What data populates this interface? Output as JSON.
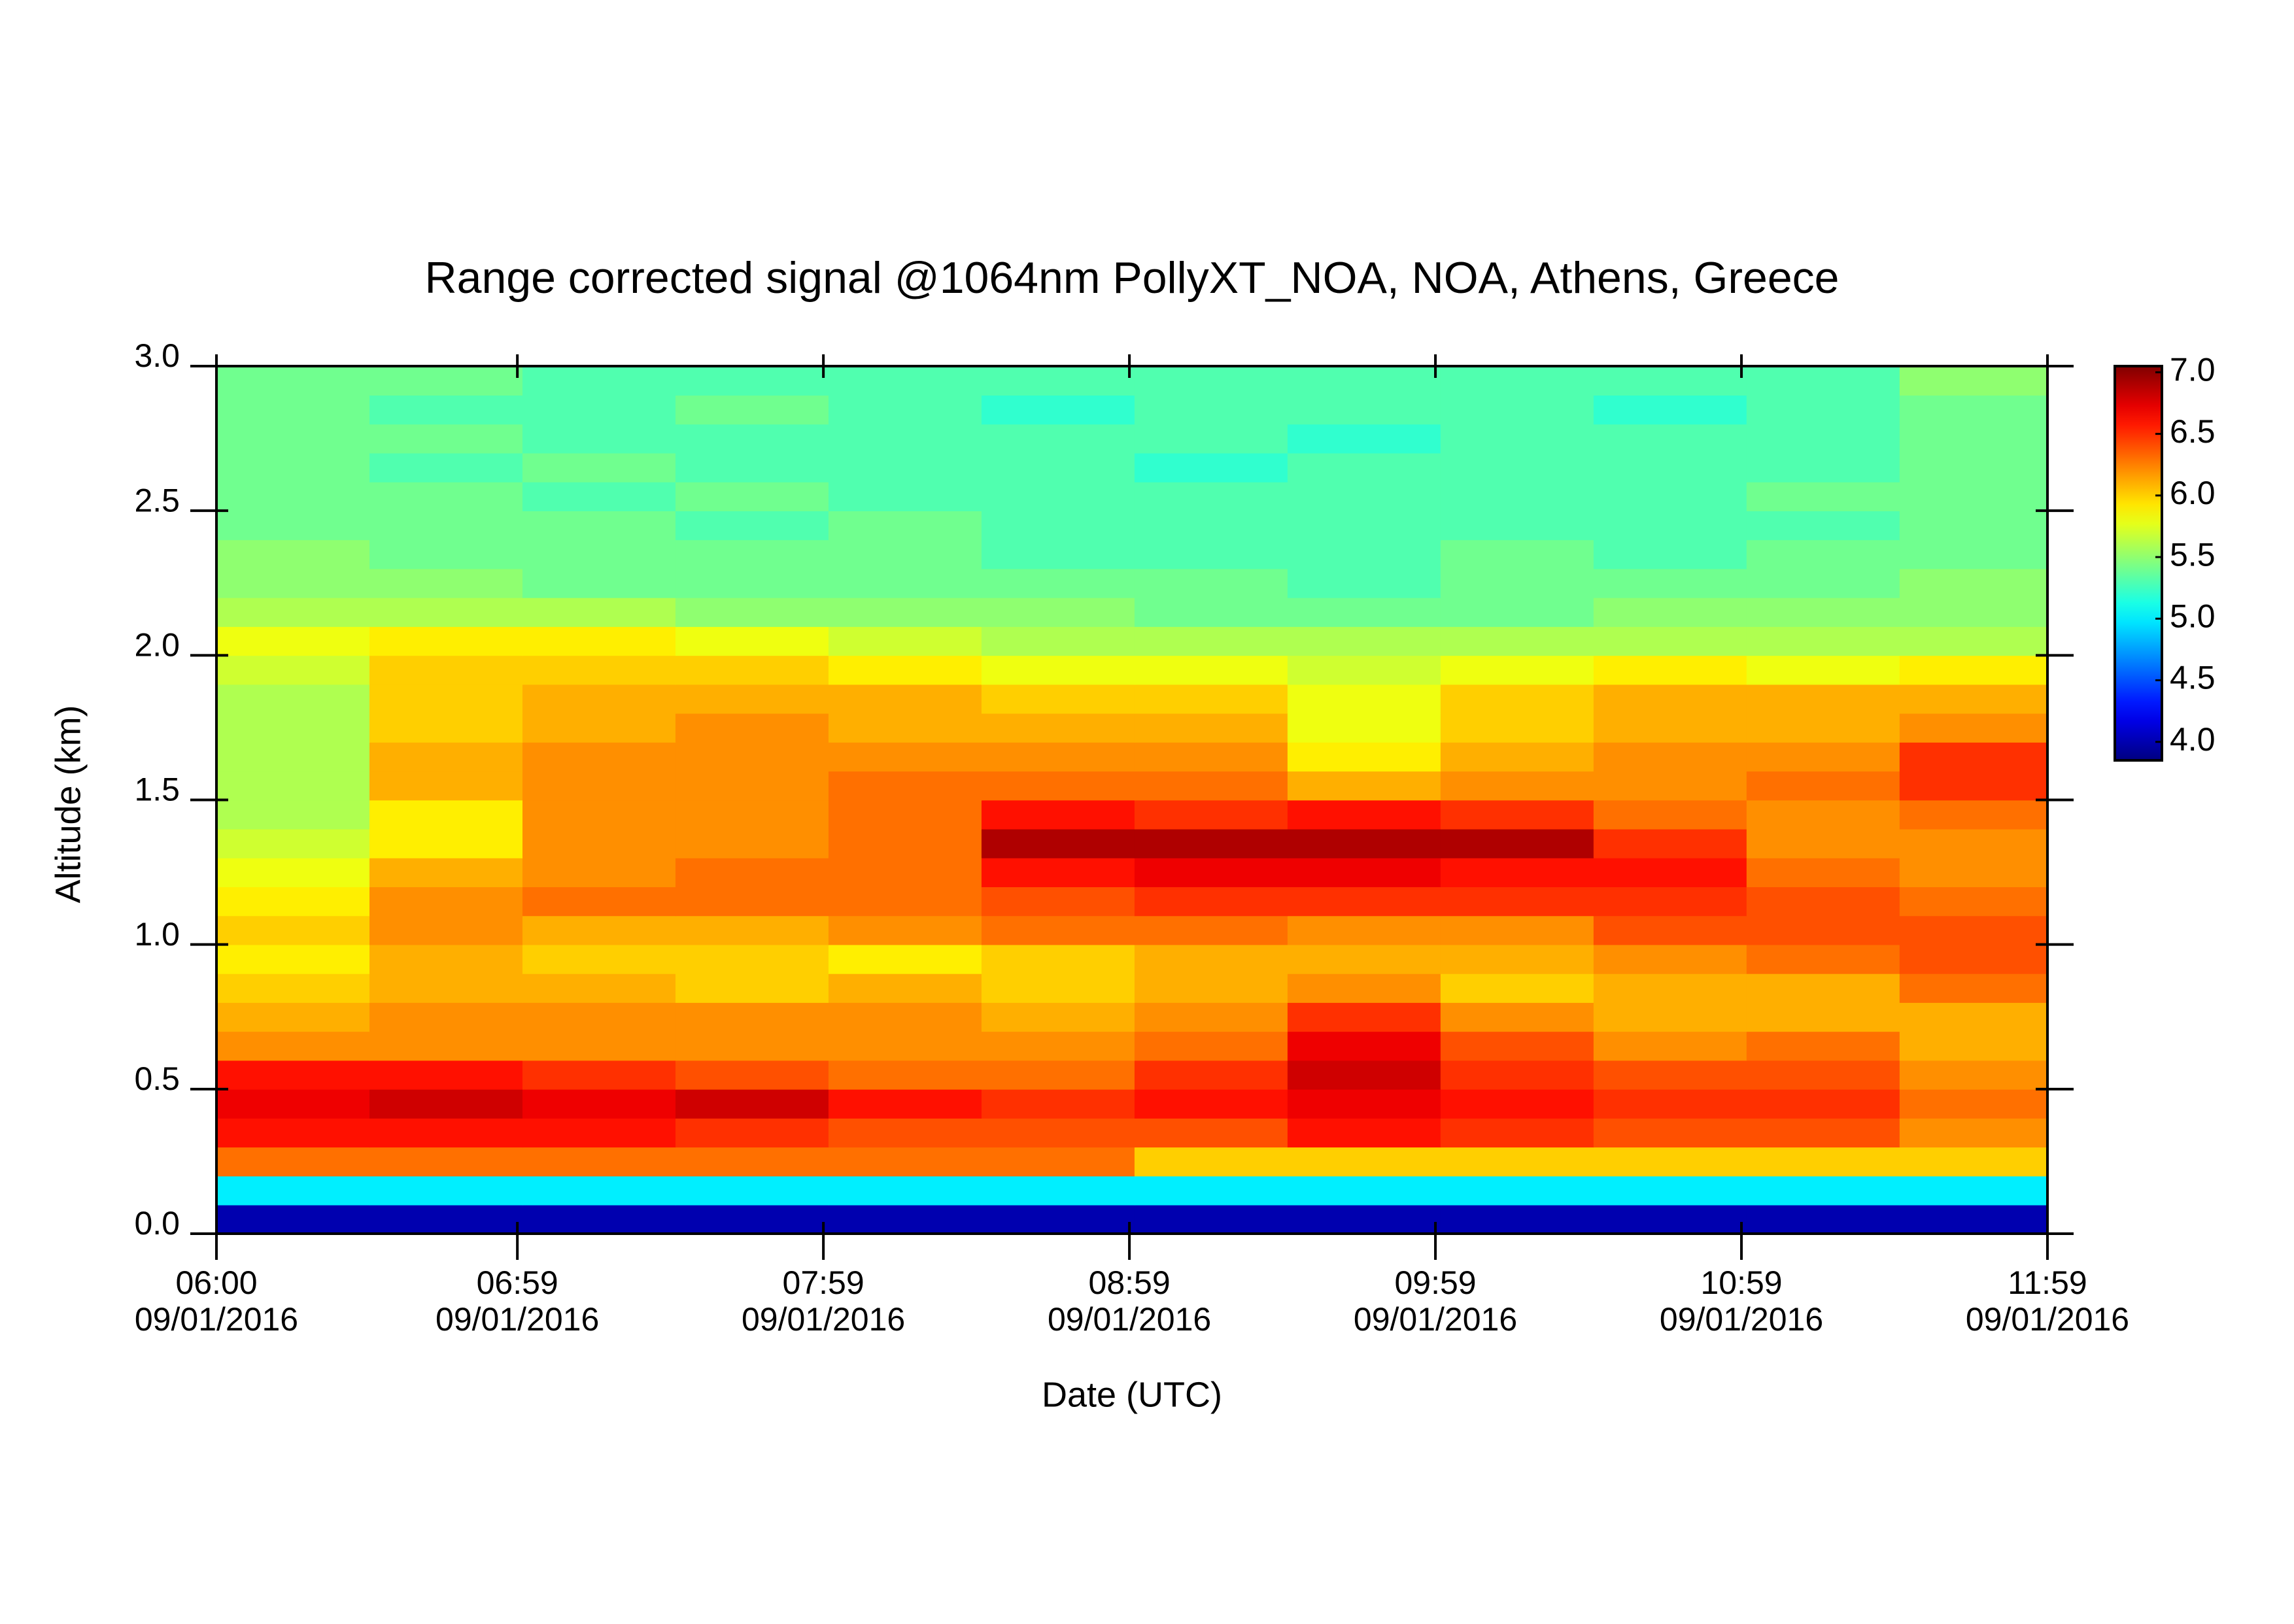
{
  "chart_data": {
    "type": "heatmap",
    "title": "Range corrected signal @1064nm  PollyXT_NOA, NOA, Athens, Greece",
    "x_label": "Date (UTC)",
    "y_label": "Altitude (km)",
    "x": [
      6.0,
      6.5,
      7.0,
      7.5,
      8.0,
      8.5,
      9.0,
      9.5,
      10.0,
      10.5,
      11.0,
      11.5
    ],
    "y": [
      0.0,
      0.1,
      0.2,
      0.3,
      0.4,
      0.5,
      0.6,
      0.7,
      0.8,
      0.9,
      1.0,
      1.1,
      1.2,
      1.3,
      1.4,
      1.5,
      1.6,
      1.7,
      1.8,
      1.9,
      2.0,
      2.1,
      2.2,
      2.3,
      2.4,
      2.5,
      2.6,
      2.7,
      2.8,
      2.9
    ],
    "z": [
      [
        4.0,
        4.0,
        4.0,
        4.0,
        4.0,
        4.0,
        4.0,
        4.0,
        4.0,
        4.0,
        4.0,
        4.0
      ],
      [
        5.0,
        5.0,
        5.0,
        5.0,
        5.0,
        5.0,
        5.0,
        5.0,
        5.0,
        5.0,
        5.0,
        5.0
      ],
      [
        6.3,
        6.3,
        6.3,
        6.3,
        6.3,
        6.3,
        6.0,
        6.0,
        6.0,
        6.0,
        6.0,
        6.0
      ],
      [
        6.6,
        6.6,
        6.6,
        6.5,
        6.4,
        6.4,
        6.4,
        6.6,
        6.5,
        6.4,
        6.4,
        6.2
      ],
      [
        6.7,
        6.8,
        6.7,
        6.8,
        6.6,
        6.5,
        6.6,
        6.7,
        6.6,
        6.5,
        6.5,
        6.3
      ],
      [
        6.6,
        6.6,
        6.5,
        6.4,
        6.3,
        6.3,
        6.5,
        6.8,
        6.5,
        6.4,
        6.4,
        6.2
      ],
      [
        6.2,
        6.2,
        6.2,
        6.2,
        6.2,
        6.2,
        6.3,
        6.7,
        6.4,
        6.2,
        6.3,
        6.1
      ],
      [
        6.1,
        6.2,
        6.2,
        6.2,
        6.2,
        6.1,
        6.2,
        6.5,
        6.2,
        6.1,
        6.1,
        6.1
      ],
      [
        6.0,
        6.1,
        6.1,
        6.0,
        6.1,
        6.0,
        6.1,
        6.2,
        6.0,
        6.1,
        6.1,
        6.3
      ],
      [
        5.9,
        6.1,
        6.0,
        6.0,
        5.9,
        6.0,
        6.1,
        6.1,
        6.1,
        6.2,
        6.3,
        6.4
      ],
      [
        6.0,
        6.2,
        6.1,
        6.1,
        6.2,
        6.3,
        6.3,
        6.2,
        6.2,
        6.4,
        6.4,
        6.4
      ],
      [
        5.9,
        6.2,
        6.3,
        6.3,
        6.3,
        6.4,
        6.5,
        6.5,
        6.5,
        6.5,
        6.4,
        6.3
      ],
      [
        5.8,
        6.1,
        6.2,
        6.3,
        6.3,
        6.6,
        6.7,
        6.7,
        6.6,
        6.6,
        6.3,
        6.2
      ],
      [
        5.7,
        5.9,
        6.2,
        6.2,
        6.3,
        6.9,
        6.9,
        6.9,
        6.9,
        6.5,
        6.2,
        6.2
      ],
      [
        5.6,
        5.9,
        6.2,
        6.2,
        6.3,
        6.6,
        6.5,
        6.6,
        6.5,
        6.3,
        6.2,
        6.3
      ],
      [
        5.6,
        6.1,
        6.2,
        6.2,
        6.3,
        6.3,
        6.3,
        6.1,
        6.2,
        6.2,
        6.3,
        6.5
      ],
      [
        5.6,
        6.1,
        6.2,
        6.2,
        6.2,
        6.2,
        6.2,
        5.9,
        6.1,
        6.2,
        6.2,
        6.5
      ],
      [
        5.6,
        6.0,
        6.1,
        6.2,
        6.1,
        6.1,
        6.1,
        5.8,
        6.0,
        6.1,
        6.1,
        6.2
      ],
      [
        5.6,
        6.0,
        6.1,
        6.1,
        6.1,
        6.0,
        6.0,
        5.8,
        6.0,
        6.1,
        6.1,
        6.1
      ],
      [
        5.7,
        6.0,
        6.0,
        6.0,
        5.9,
        5.8,
        5.8,
        5.7,
        5.8,
        5.9,
        5.8,
        5.9
      ],
      [
        5.8,
        5.9,
        5.9,
        5.8,
        5.7,
        5.6,
        5.6,
        5.6,
        5.6,
        5.6,
        5.6,
        5.6
      ],
      [
        5.6,
        5.6,
        5.6,
        5.5,
        5.5,
        5.5,
        5.4,
        5.4,
        5.4,
        5.5,
        5.5,
        5.5
      ],
      [
        5.5,
        5.5,
        5.4,
        5.4,
        5.4,
        5.4,
        5.4,
        5.3,
        5.4,
        5.4,
        5.4,
        5.5
      ],
      [
        5.5,
        5.4,
        5.4,
        5.4,
        5.4,
        5.3,
        5.3,
        5.3,
        5.4,
        5.3,
        5.4,
        5.4
      ],
      [
        5.4,
        5.4,
        5.4,
        5.3,
        5.4,
        5.3,
        5.3,
        5.3,
        5.3,
        5.3,
        5.3,
        5.4
      ],
      [
        5.4,
        5.4,
        5.3,
        5.4,
        5.3,
        5.3,
        5.3,
        5.3,
        5.3,
        5.3,
        5.4,
        5.4
      ],
      [
        5.4,
        5.3,
        5.4,
        5.3,
        5.3,
        5.3,
        5.2,
        5.3,
        5.3,
        5.3,
        5.3,
        5.4
      ],
      [
        5.4,
        5.4,
        5.3,
        5.3,
        5.3,
        5.3,
        5.3,
        5.2,
        5.3,
        5.3,
        5.3,
        5.4
      ],
      [
        5.4,
        5.3,
        5.3,
        5.4,
        5.3,
        5.2,
        5.3,
        5.3,
        5.3,
        5.2,
        5.3,
        5.4
      ],
      [
        5.4,
        5.4,
        5.3,
        5.3,
        5.3,
        5.3,
        5.3,
        5.3,
        5.3,
        5.3,
        5.3,
        5.5
      ]
    ],
    "xlim": [
      6.0,
      11.9833
    ],
    "xticks": [
      {
        "value": 6.0,
        "label": "06:00\n09/01/2016"
      },
      {
        "value": 6.9833,
        "label": "06:59\n09/01/2016"
      },
      {
        "value": 7.9833,
        "label": "07:59\n09/01/2016"
      },
      {
        "value": 8.9833,
        "label": "08:59\n09/01/2016"
      },
      {
        "value": 9.9833,
        "label": "09:59\n09/01/2016"
      },
      {
        "value": 10.9833,
        "label": "10:59\n09/01/2016"
      },
      {
        "value": 11.9833,
        "label": "11:59\n09/01/2016"
      }
    ],
    "ylim": [
      0,
      3
    ],
    "yticks": [
      {
        "value": 0,
        "label": "0.0"
      },
      0.5,
      {
        "value": 1,
        "label": "1.0"
      },
      1.5,
      {
        "value": 2,
        "label": "2.0"
      },
      2.5,
      {
        "value": 3,
        "label": "3.0"
      }
    ],
    "zlim": [
      3.85,
      7.05
    ],
    "zticks": [
      {
        "value": 4,
        "label": "4.0"
      },
      4.5,
      {
        "value": 5,
        "label": "5.0"
      },
      5.5,
      {
        "value": 6,
        "label": "6.0"
      },
      6.5,
      {
        "value": 7,
        "label": "7.0"
      }
    ],
    "colormap": "jet"
  }
}
